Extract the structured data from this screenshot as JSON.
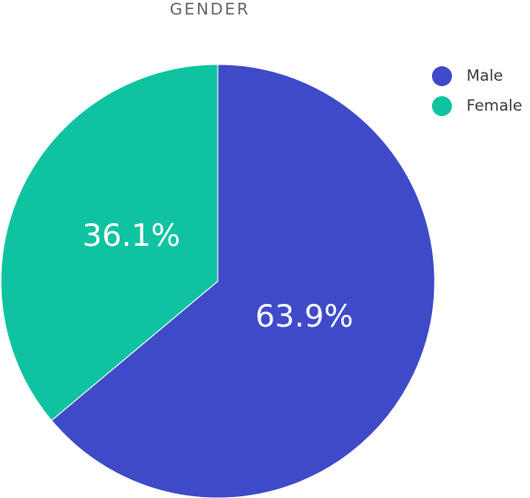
{
  "chart_data": {
    "type": "pie",
    "title": "GENDER",
    "labels": [
      "Male",
      "Female"
    ],
    "values": [
      63.9,
      36.1
    ],
    "value_labels": [
      "63.9%",
      "36.1%"
    ],
    "colors": [
      "#3f4ac9",
      "#0fc3a1"
    ],
    "legend": "top-right",
    "start": "top, clockwise"
  }
}
